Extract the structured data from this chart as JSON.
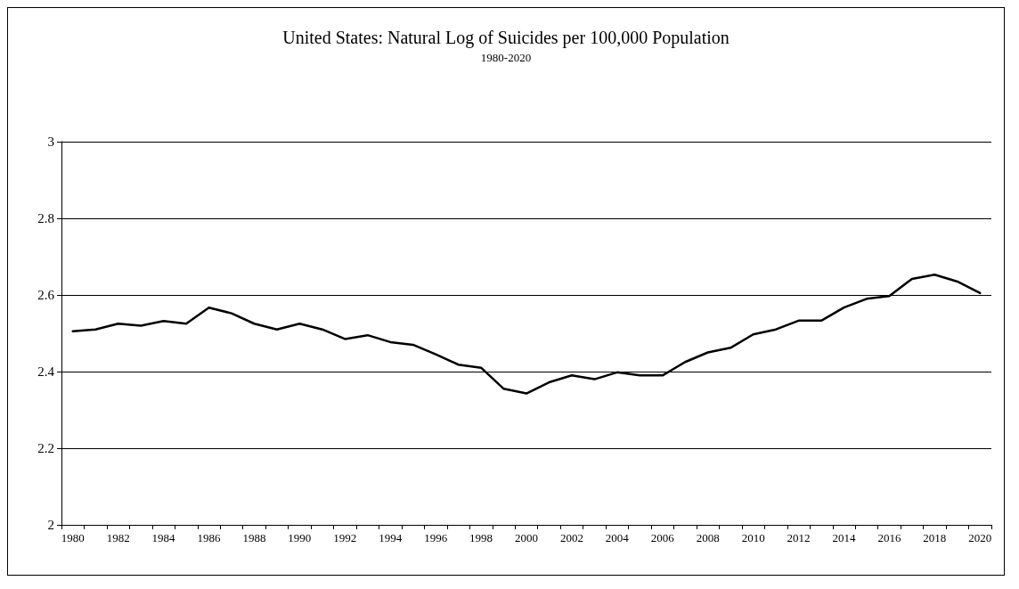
{
  "chart_data": {
    "type": "line",
    "title": "United States: Natural Log of Suicides per 100,000 Population",
    "subtitle": "1980-2020",
    "categories": [
      "1980",
      null,
      "1982",
      null,
      "1984",
      null,
      "1986",
      null,
      "1988",
      null,
      "1990",
      null,
      "1992",
      null,
      "1994",
      null,
      "1996",
      null,
      "1998",
      null,
      "2000",
      null,
      "2002",
      null,
      "2004",
      null,
      "2006",
      null,
      "2008",
      null,
      "2010",
      null,
      "2012",
      null,
      "2014",
      null,
      "2016",
      null,
      "2018",
      null,
      "2020"
    ],
    "series": [
      {
        "color": "#000000",
        "values": [
          2.505,
          2.51,
          2.525,
          2.52,
          2.532,
          2.525,
          2.567,
          2.552,
          2.525,
          2.51,
          2.525,
          2.51,
          2.485,
          2.495,
          2.477,
          2.47,
          2.445,
          2.418,
          2.41,
          2.355,
          2.343,
          2.372,
          2.39,
          2.38,
          2.398,
          2.39,
          2.39,
          2.425,
          2.45,
          2.462,
          2.497,
          2.51,
          2.533,
          2.533,
          2.567,
          2.59,
          2.597,
          2.642,
          2.653,
          2.635,
          2.605
        ]
      }
    ],
    "ylim": [
      2,
      3
    ],
    "yticks": [
      2,
      2.2,
      2.4,
      2.6,
      2.8,
      3
    ],
    "grid": "y",
    "marker": "none",
    "line_style": "solid"
  }
}
